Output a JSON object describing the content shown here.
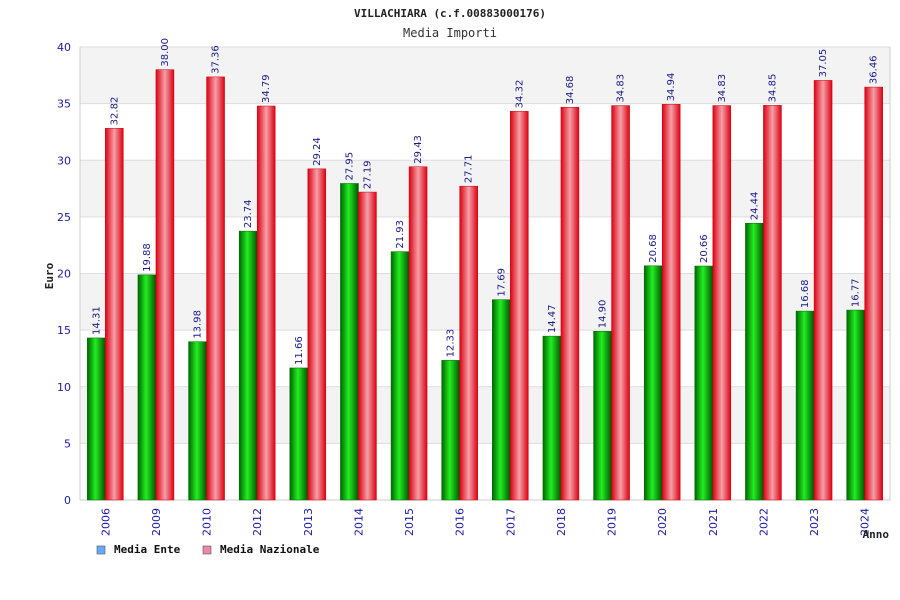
{
  "chart_data": {
    "type": "bar",
    "title": "VILLACHIARA (c.f.00883000176)",
    "subtitle": "Media Importi",
    "xlabel": "Anno",
    "ylabel": "Euro",
    "ylim": [
      0,
      40
    ],
    "yticks": [
      0,
      5,
      10,
      15,
      20,
      25,
      30,
      35,
      40
    ],
    "categories": [
      "2006",
      "2009",
      "2010",
      "2012",
      "2013",
      "2014",
      "2015",
      "2016",
      "2017",
      "2018",
      "2019",
      "2020",
      "2021",
      "2022",
      "2023",
      "2024"
    ],
    "series": [
      {
        "name": "Media Ente",
        "color": "#00aa00",
        "legend_color": "#66aaff",
        "values": [
          14.31,
          19.88,
          13.98,
          23.74,
          11.66,
          27.95,
          21.93,
          12.33,
          17.69,
          14.47,
          14.9,
          20.68,
          20.66,
          24.44,
          16.68,
          16.77
        ],
        "labels": [
          "14.31",
          "19.88",
          "13.98",
          "23.74",
          "11.66",
          "27.95",
          "21.93",
          "12.33",
          "17.69",
          "14.47",
          "14.90",
          "20.68",
          "20.66",
          "24.44",
          "16.68",
          "16.77"
        ]
      },
      {
        "name": "Media Nazionale",
        "color": "#ee1122",
        "legend_color": "#ee88aa",
        "values": [
          32.82,
          38.0,
          37.36,
          34.79,
          29.24,
          27.19,
          29.43,
          27.71,
          34.32,
          34.68,
          34.83,
          34.94,
          34.83,
          34.85,
          37.05,
          36.46
        ],
        "labels": [
          "32.82",
          "38.00",
          "37.36",
          "34.79",
          "29.24",
          "27.19",
          "29.43",
          "27.71",
          "34.32",
          "34.68",
          "34.83",
          "34.94",
          "34.83",
          "34.85",
          "37.05",
          "36.46"
        ]
      }
    ],
    "grid": true,
    "legend": "bottom-left"
  }
}
